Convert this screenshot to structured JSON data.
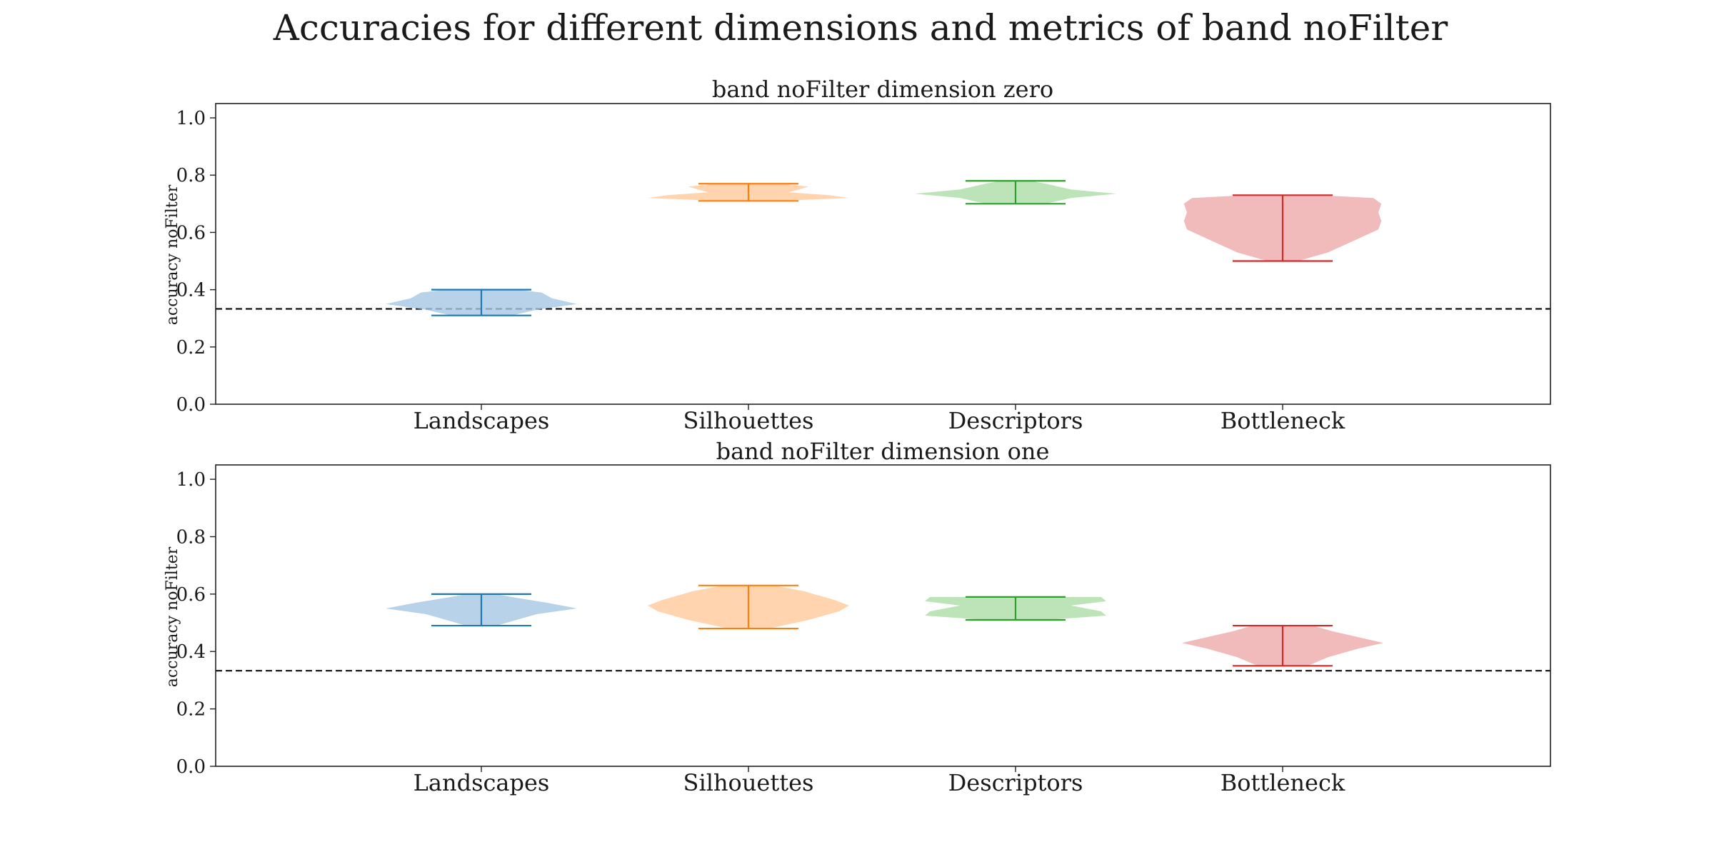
{
  "figure": {
    "title": "Accuracies for different dimensions and metrics of band noFilter"
  },
  "chart_data": [
    {
      "type": "violin",
      "title": "band noFilter dimension zero",
      "xlabel": "",
      "ylabel": "accuracy noFilter",
      "ylim": [
        0.0,
        1.05
      ],
      "yticks": [
        "0.0",
        "0.2",
        "0.4",
        "0.6",
        "0.8",
        "1.0"
      ],
      "categories": [
        "Landscapes",
        "Silhouettes",
        "Descriptors",
        "Bottleneck"
      ],
      "baseline": 0.333,
      "series": [
        {
          "category": "Landscapes",
          "color": "#1f77b4",
          "fill": "#a6c8e3",
          "min": 0.31,
          "max": 0.4,
          "profile": [
            [
              0.31,
              0.3
            ],
            [
              0.33,
              0.55
            ],
            [
              0.35,
              0.95
            ],
            [
              0.37,
              0.7
            ],
            [
              0.39,
              0.6
            ],
            [
              0.4,
              0.35
            ]
          ]
        },
        {
          "category": "Silhouettes",
          "color": "#ff7f0e",
          "fill": "#ffc99a",
          "min": 0.71,
          "max": 0.77,
          "profile": [
            [
              0.71,
              0.3
            ],
            [
              0.72,
              1.0
            ],
            [
              0.73,
              0.8
            ],
            [
              0.74,
              0.4
            ],
            [
              0.75,
              0.5
            ],
            [
              0.76,
              0.6
            ],
            [
              0.77,
              0.3
            ]
          ]
        },
        {
          "category": "Descriptors",
          "color": "#2ca02c",
          "fill": "#acdca6",
          "min": 0.7,
          "max": 0.78,
          "profile": [
            [
              0.7,
              0.3
            ],
            [
              0.72,
              0.55
            ],
            [
              0.735,
              1.0
            ],
            [
              0.75,
              0.55
            ],
            [
              0.77,
              0.3
            ],
            [
              0.78,
              0.15
            ]
          ]
        },
        {
          "category": "Bottleneck",
          "color": "#d62728",
          "fill": "#eeaaab",
          "min": 0.5,
          "max": 0.73,
          "profile": [
            [
              0.5,
              0.15
            ],
            [
              0.53,
              0.45
            ],
            [
              0.57,
              0.7
            ],
            [
              0.61,
              0.95
            ],
            [
              0.64,
              0.98
            ],
            [
              0.67,
              0.95
            ],
            [
              0.7,
              0.98
            ],
            [
              0.72,
              0.9
            ],
            [
              0.73,
              0.35
            ]
          ]
        }
      ]
    },
    {
      "type": "violin",
      "title": "band noFilter dimension one",
      "xlabel": "",
      "ylabel": "accuracy noFilter",
      "ylim": [
        0.0,
        1.05
      ],
      "yticks": [
        "0.0",
        "0.2",
        "0.4",
        "0.6",
        "0.8",
        "1.0"
      ],
      "categories": [
        "Landscapes",
        "Silhouettes",
        "Descriptors",
        "Bottleneck"
      ],
      "baseline": 0.333,
      "series": [
        {
          "category": "Landscapes",
          "color": "#1f77b4",
          "fill": "#a6c8e3",
          "min": 0.49,
          "max": 0.6,
          "profile": [
            [
              0.49,
              0.15
            ],
            [
              0.51,
              0.35
            ],
            [
              0.53,
              0.55
            ],
            [
              0.55,
              0.95
            ],
            [
              0.57,
              0.65
            ],
            [
              0.59,
              0.3
            ],
            [
              0.6,
              0.15
            ]
          ]
        },
        {
          "category": "Silhouettes",
          "color": "#ff7f0e",
          "fill": "#ffc99a",
          "min": 0.48,
          "max": 0.63,
          "profile": [
            [
              0.48,
              0.2
            ],
            [
              0.51,
              0.6
            ],
            [
              0.54,
              0.9
            ],
            [
              0.56,
              1.0
            ],
            [
              0.58,
              0.85
            ],
            [
              0.61,
              0.55
            ],
            [
              0.63,
              0.25
            ]
          ]
        },
        {
          "category": "Descriptors",
          "color": "#2ca02c",
          "fill": "#acdca6",
          "min": 0.51,
          "max": 0.59,
          "profile": [
            [
              0.51,
              0.3
            ],
            [
              0.525,
              0.9
            ],
            [
              0.54,
              0.85
            ],
            [
              0.56,
              0.55
            ],
            [
              0.575,
              0.9
            ],
            [
              0.59,
              0.85
            ]
          ]
        },
        {
          "category": "Bottleneck",
          "color": "#d62728",
          "fill": "#eeaaab",
          "min": 0.35,
          "max": 0.49,
          "profile": [
            [
              0.35,
              0.25
            ],
            [
              0.38,
              0.45
            ],
            [
              0.41,
              0.75
            ],
            [
              0.43,
              1.0
            ],
            [
              0.45,
              0.75
            ],
            [
              0.47,
              0.5
            ],
            [
              0.49,
              0.3
            ]
          ]
        }
      ]
    }
  ]
}
